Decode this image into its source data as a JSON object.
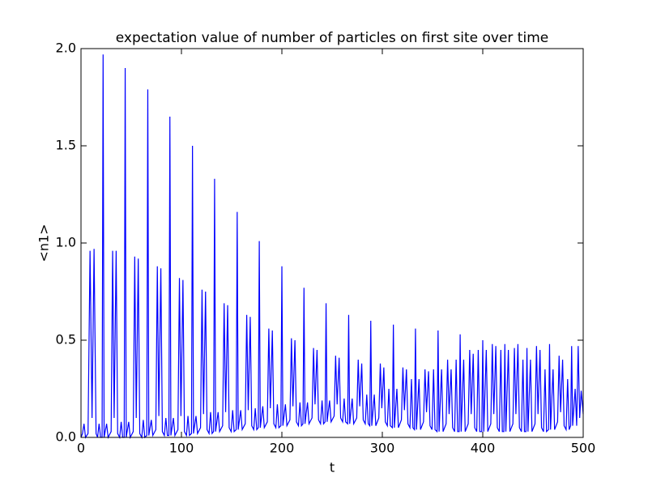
{
  "chart_data": {
    "type": "line",
    "title": "expectation value of number of particles on first site over time",
    "xlabel": "t",
    "ylabel": "<n1>",
    "color": "#0000ff",
    "xlim": [
      0,
      500
    ],
    "xticks": [
      0,
      100,
      200,
      300,
      400,
      500
    ],
    "ylim": [
      0,
      2
    ],
    "yticks": [
      {
        "value": 0,
        "label": "0.0"
      },
      0.5,
      {
        "value": 1,
        "label": "1.0"
      },
      1.5,
      {
        "value": 2,
        "label": "2.0"
      }
    ],
    "x": [
      0,
      1.5,
      3,
      4.5,
      7,
      9,
      11,
      13,
      15,
      16.5,
      18,
      19.5,
      21,
      22,
      23,
      25.5,
      27,
      30,
      31.5,
      33,
      35,
      36.5,
      38.5,
      40,
      41.5,
      43,
      44,
      45,
      47.5,
      49,
      52,
      53.5,
      55,
      57,
      58.5,
      60.5,
      62,
      63.5,
      65.5,
      66.5,
      67.5,
      70,
      71.5,
      74.5,
      76,
      77.5,
      79.5,
      81,
      83,
      84.5,
      86,
      87.5,
      88.5,
      89.5,
      92,
      93.5,
      96.5,
      98,
      99.5,
      101.5,
      103,
      105,
      106.5,
      108,
      110,
      111,
      112,
      114.5,
      116,
      119,
      120.5,
      122,
      124,
      125.5,
      127.5,
      129,
      130.5,
      132,
      133,
      134,
      136.5,
      138,
      141,
      142.5,
      144,
      146,
      147.5,
      149.5,
      151,
      152.5,
      154.5,
      155.5,
      156.5,
      159,
      160.5,
      163.5,
      165,
      166.5,
      168.5,
      170,
      172,
      173.5,
      175,
      176.5,
      177.5,
      178.5,
      181,
      182.5,
      185.5,
      187,
      188.5,
      190.5,
      192,
      194,
      195.5,
      197,
      199,
      200,
      201,
      203.5,
      205,
      208,
      209.5,
      211,
      213,
      214.5,
      216.5,
      218,
      219.5,
      221,
      222,
      223,
      225.5,
      227,
      230,
      231.5,
      233,
      235,
      236.5,
      238.5,
      240,
      241.5,
      243,
      244,
      245,
      247.5,
      249,
      252,
      253.5,
      255,
      257,
      258.5,
      260.5,
      262,
      263.5,
      265.5,
      266.5,
      267.5,
      270,
      271.5,
      274.5,
      276,
      277.5,
      279.5,
      281,
      283,
      284.5,
      286,
      287.5,
      288.5,
      289.5,
      292,
      293.5,
      296.5,
      298,
      299.5,
      301.5,
      303,
      305,
      306.5,
      308,
      310,
      311,
      312,
      314.5,
      316,
      319,
      320.5,
      322,
      324,
      325.5,
      327.5,
      329,
      330.5,
      332,
      333,
      334,
      336.5,
      338,
      341,
      342.5,
      344,
      346,
      347.5,
      349.5,
      351,
      352.5,
      354.5,
      355.5,
      356.5,
      359,
      360.5,
      363.5,
      365,
      366.5,
      368.5,
      370,
      372,
      373.5,
      375,
      376.5,
      377.5,
      378.5,
      381,
      382.5,
      385.5,
      387,
      388.5,
      390.5,
      392,
      394,
      395.5,
      397,
      399,
      400,
      401,
      403.5,
      405,
      408,
      409.5,
      411,
      413,
      414.5,
      416.5,
      418,
      419.5,
      421,
      422,
      423,
      425.5,
      427,
      430,
      431.5,
      433,
      435,
      436.5,
      438.5,
      440,
      441.5,
      443,
      444,
      445,
      447.5,
      449,
      452,
      453.5,
      455,
      457,
      458.5,
      460.5,
      462,
      463.5,
      465.5,
      466.5,
      467.5,
      470,
      471.5,
      474.5,
      476,
      477.5,
      479.5,
      481,
      483,
      484.5,
      486,
      487.5,
      488.5,
      489.5,
      492,
      493.5,
      495,
      496.5,
      498,
      500
    ],
    "values": [
      0,
      0.02,
      0.07,
      0,
      0.02,
      0.96,
      0.1,
      0.97,
      0.02,
      0,
      0.07,
      0,
      0,
      1.97,
      0,
      0.07,
      0,
      0.03,
      0.96,
      0.1,
      0.96,
      0.02,
      0,
      0.08,
      0,
      0,
      1.9,
      0,
      0.08,
      0,
      0.03,
      0.93,
      0.1,
      0.92,
      0.02,
      0,
      0.09,
      0,
      0.01,
      1.79,
      0.01,
      0.09,
      0.01,
      0.04,
      0.88,
      0.11,
      0.87,
      0.03,
      0.01,
      0.1,
      0.01,
      0.01,
      1.65,
      0.01,
      0.1,
      0.01,
      0.04,
      0.82,
      0.11,
      0.81,
      0.03,
      0.01,
      0.11,
      0.01,
      0.02,
      1.5,
      0.02,
      0.11,
      0.02,
      0.05,
      0.76,
      0.12,
      0.75,
      0.04,
      0.02,
      0.13,
      0.02,
      0.03,
      1.33,
      0.03,
      0.13,
      0.03,
      0.06,
      0.69,
      0.13,
      0.68,
      0.05,
      0.03,
      0.14,
      0.03,
      0.04,
      1.16,
      0.04,
      0.14,
      0.04,
      0.07,
      0.63,
      0.14,
      0.62,
      0.06,
      0.04,
      0.15,
      0.04,
      0.05,
      1.01,
      0.05,
      0.16,
      0.05,
      0.08,
      0.56,
      0.15,
      0.55,
      0.07,
      0.05,
      0.17,
      0.05,
      0.06,
      0.88,
      0.06,
      0.17,
      0.06,
      0.09,
      0.51,
      0.16,
      0.5,
      0.08,
      0.06,
      0.18,
      0.06,
      0.07,
      0.77,
      0.07,
      0.18,
      0.07,
      0.1,
      0.46,
      0.17,
      0.45,
      0.09,
      0.07,
      0.19,
      0.07,
      0.08,
      0.69,
      0.08,
      0.19,
      0.08,
      0.11,
      0.42,
      0.17,
      0.41,
      0.1,
      0.08,
      0.2,
      0.08,
      0.07,
      0.63,
      0.07,
      0.2,
      0.07,
      0.1,
      0.4,
      0.16,
      0.38,
      0.09,
      0.07,
      0.22,
      0.07,
      0.06,
      0.6,
      0.06,
      0.22,
      0.06,
      0.1,
      0.38,
      0.15,
      0.36,
      0.08,
      0.06,
      0.25,
      0.06,
      0.05,
      0.58,
      0.05,
      0.25,
      0.05,
      0.09,
      0.36,
      0.14,
      0.35,
      0.07,
      0.05,
      0.3,
      0.05,
      0.04,
      0.56,
      0.04,
      0.3,
      0.04,
      0.08,
      0.35,
      0.13,
      0.34,
      0.06,
      0.04,
      0.35,
      0.04,
      0.03,
      0.55,
      0.03,
      0.35,
      0.03,
      0.07,
      0.4,
      0.12,
      0.35,
      0.05,
      0.03,
      0.4,
      0.03,
      0.03,
      0.53,
      0.03,
      0.4,
      0.03,
      0.07,
      0.45,
      0.12,
      0.43,
      0.05,
      0.03,
      0.45,
      0.03,
      0.03,
      0.5,
      0.03,
      0.45,
      0.03,
      0.07,
      0.48,
      0.12,
      0.47,
      0.05,
      0.03,
      0.45,
      0.03,
      0.03,
      0.48,
      0.03,
      0.45,
      0.03,
      0.07,
      0.46,
      0.12,
      0.48,
      0.05,
      0.03,
      0.4,
      0.03,
      0.03,
      0.46,
      0.03,
      0.4,
      0.03,
      0.07,
      0.47,
      0.12,
      0.45,
      0.05,
      0.03,
      0.35,
      0.03,
      0.04,
      0.48,
      0.04,
      0.35,
      0.04,
      0.08,
      0.42,
      0.13,
      0.4,
      0.06,
      0.04,
      0.3,
      0.04,
      0.06,
      0.47,
      0.06,
      0.25,
      0.06,
      0.47,
      0.1,
      0.24,
      0.12
    ]
  }
}
